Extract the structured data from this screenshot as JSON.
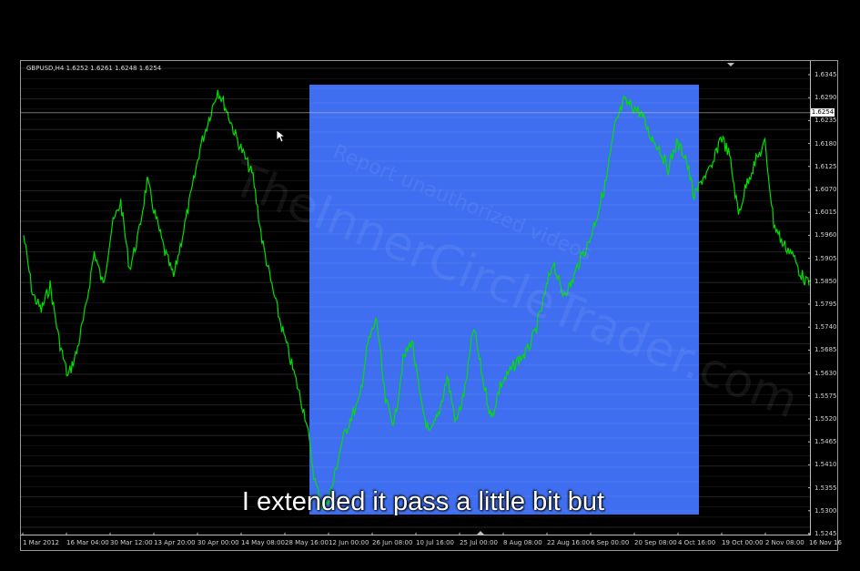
{
  "chart": {
    "symbol_info": "GBPUSD,H4  1.6252 1.6261 1.6248 1.6254",
    "current_price": "1.6254",
    "colors": {
      "background": "#000000",
      "line": "#00e000",
      "highlight": "#3f6ff0",
      "grid": "#ffffff"
    },
    "price_ticks": [
      "1.6345",
      "1.6290",
      "1.6235",
      "1.6180",
      "1.6125",
      "1.6070",
      "1.6015",
      "1.5960",
      "1.5905",
      "1.5850",
      "1.5795",
      "1.5740",
      "1.5685",
      "1.5630",
      "1.5575",
      "1.5520",
      "1.5465",
      "1.5410",
      "1.5355",
      "1.5300",
      "1.5245"
    ],
    "time_ticks": [
      "1 Mar 2012",
      "16 Mar 04:00",
      "30 Mar 12:00",
      "13 Apr 20:00",
      "30 Apr 00:00",
      "14 May 08:00",
      "28 May 16:00",
      "12 Jun 00:00",
      "26 Jun 08:00",
      "10 Jul 16:00",
      "25 Jul 00:00",
      "8 Aug 08:00",
      "22 Aug 16:00",
      "6 Sep 00:00",
      "20 Sep 08:00",
      "4 Oct 16:00",
      "19 Oct 00:00",
      "2 Nov 08:00",
      "16 Nov 16"
    ]
  },
  "chart_data": {
    "type": "line",
    "ylim": [
      1.5245,
      1.6345
    ],
    "series": [
      {
        "values": [
          1.596,
          1.582,
          1.578,
          1.584,
          1.571,
          1.562,
          1.568,
          1.578,
          1.592,
          1.584,
          1.598,
          1.604,
          1.588,
          1.596,
          1.609,
          1.6,
          1.592,
          1.586,
          1.596,
          1.606,
          1.617,
          1.624,
          1.631,
          1.626,
          1.62,
          1.615,
          1.61,
          1.595,
          1.585,
          1.576,
          1.568,
          1.56,
          1.552,
          1.537,
          1.53,
          1.536,
          1.546,
          1.552,
          1.556,
          1.57,
          1.576,
          1.556,
          1.551,
          1.566,
          1.571,
          1.556,
          1.548,
          1.553,
          1.562,
          1.551,
          1.559,
          1.574,
          1.562,
          1.552,
          1.56,
          1.563,
          1.566,
          1.568,
          1.573,
          1.581,
          1.59,
          1.582,
          1.584,
          1.59,
          1.594,
          1.601,
          1.609,
          1.622,
          1.628,
          1.627,
          1.625,
          1.62,
          1.617,
          1.612,
          1.618,
          1.615,
          1.605,
          1.61,
          1.612,
          1.62,
          1.615,
          1.601,
          1.609,
          1.614,
          1.618,
          1.599,
          1.594,
          1.592,
          1.587,
          1.584
        ]
      }
    ]
  },
  "watermark": {
    "site": "TheInnerCircleTrader.com",
    "report": "Report unauthorized videos"
  },
  "subtitle": "I extended it pass a little bit but"
}
